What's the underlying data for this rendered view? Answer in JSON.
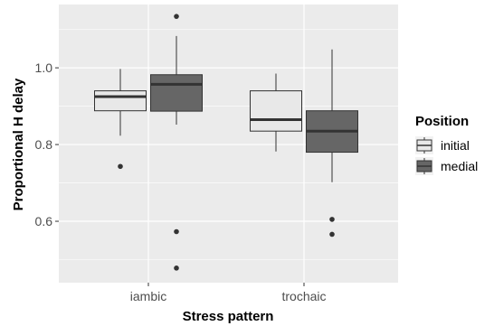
{
  "chart_data": {
    "type": "boxplot",
    "xlabel": "Stress pattern",
    "ylabel": "Proportional H delay",
    "categories": [
      "iambic",
      "trochaic"
    ],
    "ylim": [
      0.44,
      1.165
    ],
    "yticks": [
      0.6,
      0.8,
      1.0
    ],
    "ytick_labels": [
      "0.6",
      "0.8",
      "1.0"
    ],
    "grid": true,
    "legend": {
      "title": "Position",
      "position": "right"
    },
    "series": [
      {
        "name": "initial",
        "color": "#e8e8e8",
        "boxes": [
          {
            "category": "iambic",
            "lower_whisker": 0.823,
            "q1": 0.888,
            "median": 0.925,
            "q3": 0.94,
            "upper_whisker": 0.997,
            "outliers": [
              0.743
            ]
          },
          {
            "category": "trochaic",
            "lower_whisker": 0.782,
            "q1": 0.835,
            "median": 0.865,
            "q3": 0.94,
            "upper_whisker": 0.985,
            "outliers": []
          }
        ]
      },
      {
        "name": "medial",
        "color": "#666666",
        "boxes": [
          {
            "category": "iambic",
            "lower_whisker": 0.852,
            "q1": 0.887,
            "median": 0.957,
            "q3": 0.982,
            "upper_whisker": 1.083,
            "outliers": [
              1.134,
              0.573,
              0.478
            ]
          },
          {
            "category": "trochaic",
            "lower_whisker": 0.702,
            "q1": 0.78,
            "median": 0.835,
            "q3": 0.888,
            "upper_whisker": 1.048,
            "outliers": [
              0.605,
              0.566
            ]
          }
        ]
      }
    ]
  }
}
